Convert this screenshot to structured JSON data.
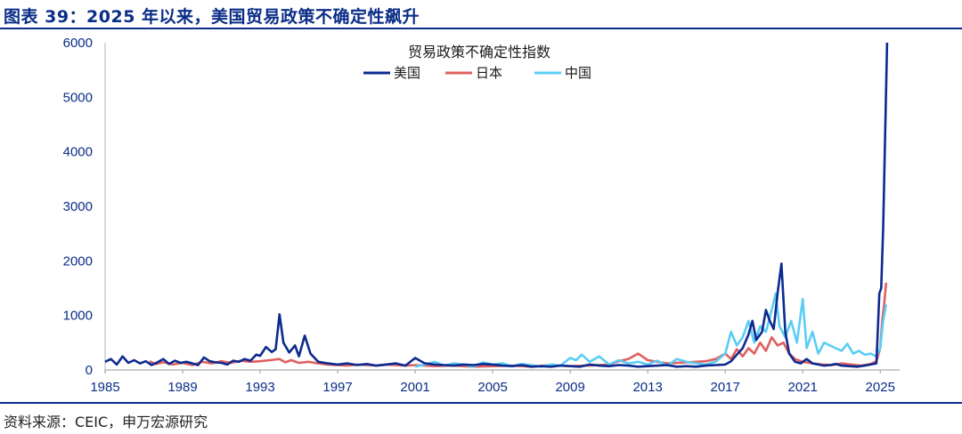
{
  "figure": {
    "title": "图表 39：2025 年以来，美国贸易政策不确定性飙升",
    "source": "资料来源：CEIC，申万宏源研究"
  },
  "chart_data": {
    "type": "line",
    "legend_title": "贸易政策不确定性指数",
    "legend_placement": "top-center",
    "grid": false,
    "xlim": [
      1985,
      2026
    ],
    "ylim": [
      0,
      6000
    ],
    "x_ticks": [
      "1985",
      "1989",
      "1993",
      "1997",
      "2001",
      "2005",
      "2009",
      "2013",
      "2017",
      "2021",
      "2025"
    ],
    "y_ticks": [
      "0",
      "1000",
      "2000",
      "3000",
      "4000",
      "5000",
      "6000"
    ],
    "series": [
      {
        "name": "美国",
        "color": "#0d2a8f",
        "x": [
          1985,
          1985.3,
          1985.6,
          1985.9,
          1986.2,
          1986.5,
          1986.8,
          1987.1,
          1987.4,
          1987.7,
          1988.0,
          1988.3,
          1988.6,
          1988.9,
          1989.2,
          1989.5,
          1989.8,
          1990.1,
          1990.4,
          1990.7,
          1991.0,
          1991.3,
          1991.6,
          1991.9,
          1992.2,
          1992.5,
          1992.8,
          1993.0,
          1993.3,
          1993.6,
          1993.8,
          1994.0,
          1994.2,
          1994.5,
          1994.8,
          1995.0,
          1995.3,
          1995.6,
          1996.0,
          1996.5,
          1997.0,
          1997.5,
          1998.0,
          1998.5,
          1999.0,
          1999.5,
          2000.0,
          2000.5,
          2001.0,
          2001.5,
          2002.0,
          2002.5,
          2003.0,
          2003.5,
          2004.0,
          2004.5,
          2005.0,
          2005.5,
          2006.0,
          2006.5,
          2007.0,
          2007.5,
          2008.0,
          2008.5,
          2009.0,
          2009.5,
          2010.0,
          2010.5,
          2011.0,
          2011.5,
          2012.0,
          2012.5,
          2013.0,
          2013.5,
          2014.0,
          2014.5,
          2015.0,
          2015.5,
          2016.0,
          2016.5,
          2017.0,
          2017.3,
          2017.6,
          2017.9,
          2018.2,
          2018.4,
          2018.6,
          2018.9,
          2019.1,
          2019.3,
          2019.5,
          2019.7,
          2019.9,
          2020.1,
          2020.3,
          2020.6,
          2020.9,
          2021.2,
          2021.5,
          2021.8,
          2022.1,
          2022.4,
          2022.7,
          2023.0,
          2023.4,
          2023.8,
          2024.2,
          2024.5,
          2024.8,
          2024.95,
          2025.05,
          2025.15,
          2025.25,
          2025.35
        ],
        "values": [
          150,
          200,
          100,
          250,
          130,
          180,
          120,
          160,
          90,
          140,
          200,
          110,
          170,
          130,
          150,
          120,
          90,
          230,
          160,
          140,
          130,
          100,
          170,
          150,
          200,
          170,
          280,
          260,
          420,
          330,
          380,
          1020,
          500,
          320,
          450,
          250,
          630,
          300,
          150,
          120,
          100,
          120,
          90,
          110,
          80,
          100,
          120,
          80,
          220,
          120,
          100,
          90,
          80,
          100,
          90,
          110,
          100,
          80,
          70,
          90,
          60,
          70,
          60,
          80,
          70,
          60,
          100,
          80,
          70,
          90,
          80,
          60,
          70,
          80,
          90,
          60,
          70,
          60,
          80,
          90,
          100,
          160,
          280,
          400,
          650,
          900,
          550,
          700,
          1100,
          900,
          750,
          1400,
          1950,
          700,
          300,
          150,
          120,
          200,
          120,
          100,
          80,
          90,
          110,
          80,
          70,
          60,
          80,
          100,
          120,
          1400,
          1500,
          2600,
          4300,
          6000
        ]
      },
      {
        "name": "日本",
        "color": "#e0605f",
        "x": [
          1987.3,
          1987.6,
          1988.0,
          1988.5,
          1989.0,
          1989.5,
          1990.0,
          1990.5,
          1991.0,
          1991.5,
          1992.0,
          1992.5,
          1993.0,
          1993.5,
          1994.0,
          1994.3,
          1994.6,
          1995.0,
          1995.5,
          1996.0,
          1996.5,
          1997.0,
          1997.5,
          1998.0,
          1998.5,
          1999.0,
          1999.5,
          2000.0,
          2000.5,
          2001.0,
          2002.0,
          2003.0,
          2004.0,
          2005.0,
          2006.0,
          2007.0,
          2008.0,
          2009.0,
          2010.0,
          2011.0,
          2011.5,
          2012.0,
          2012.5,
          2013.0,
          2013.5,
          2014.0,
          2015.0,
          2016.0,
          2016.5,
          2017.0,
          2017.3,
          2017.6,
          2017.9,
          2018.2,
          2018.5,
          2018.8,
          2019.1,
          2019.4,
          2019.7,
          2020.0,
          2020.3,
          2020.6,
          2021.0,
          2021.5,
          2022.0,
          2022.5,
          2023.0,
          2023.5,
          2024.0,
          2024.5,
          2024.8,
          2025.0,
          2025.1,
          2025.2,
          2025.3
        ],
        "values": [
          160,
          110,
          140,
          100,
          130,
          90,
          150,
          120,
          160,
          130,
          170,
          150,
          160,
          180,
          200,
          140,
          180,
          130,
          150,
          120,
          100,
          90,
          80,
          100,
          90,
          80,
          100,
          90,
          80,
          90,
          70,
          80,
          60,
          70,
          80,
          60,
          90,
          70,
          80,
          100,
          160,
          200,
          300,
          180,
          150,
          120,
          140,
          160,
          200,
          300,
          200,
          380,
          250,
          400,
          300,
          500,
          350,
          600,
          450,
          500,
          300,
          200,
          150,
          120,
          100,
          90,
          120,
          100,
          80,
          110,
          160,
          400,
          900,
          1200,
          1600
        ]
      },
      {
        "name": "中国",
        "color": "#5bcdf5",
        "x": [
          2001.0,
          2001.5,
          2002.0,
          2002.5,
          2003.0,
          2003.5,
          2004.0,
          2004.5,
          2005.0,
          2005.5,
          2006.0,
          2006.5,
          2007.0,
          2007.5,
          2008.0,
          2008.5,
          2009.0,
          2009.3,
          2009.6,
          2010.0,
          2010.5,
          2011.0,
          2011.5,
          2012.0,
          2012.5,
          2013.0,
          2013.5,
          2014.0,
          2014.5,
          2015.0,
          2015.5,
          2016.0,
          2016.5,
          2017.0,
          2017.3,
          2017.6,
          2017.9,
          2018.2,
          2018.5,
          2018.8,
          2019.1,
          2019.4,
          2019.6,
          2019.8,
          2020.1,
          2020.4,
          2020.7,
          2021.0,
          2021.2,
          2021.5,
          2021.8,
          2022.1,
          2022.4,
          2022.7,
          2023.0,
          2023.3,
          2023.6,
          2023.9,
          2024.2,
          2024.5,
          2024.8,
          2025.0,
          2025.15,
          2025.3
        ],
        "values": [
          60,
          100,
          150,
          80,
          120,
          100,
          60,
          140,
          100,
          120,
          70,
          110,
          90,
          60,
          100,
          80,
          220,
          180,
          280,
          150,
          250,
          100,
          180,
          120,
          150,
          100,
          170,
          80,
          200,
          150,
          120,
          100,
          150,
          300,
          700,
          450,
          600,
          900,
          500,
          800,
          700,
          1100,
          1400,
          800,
          600,
          900,
          500,
          1300,
          400,
          700,
          300,
          500,
          450,
          400,
          350,
          480,
          300,
          350,
          280,
          300,
          250,
          400,
          900,
          1200
        ]
      }
    ]
  }
}
